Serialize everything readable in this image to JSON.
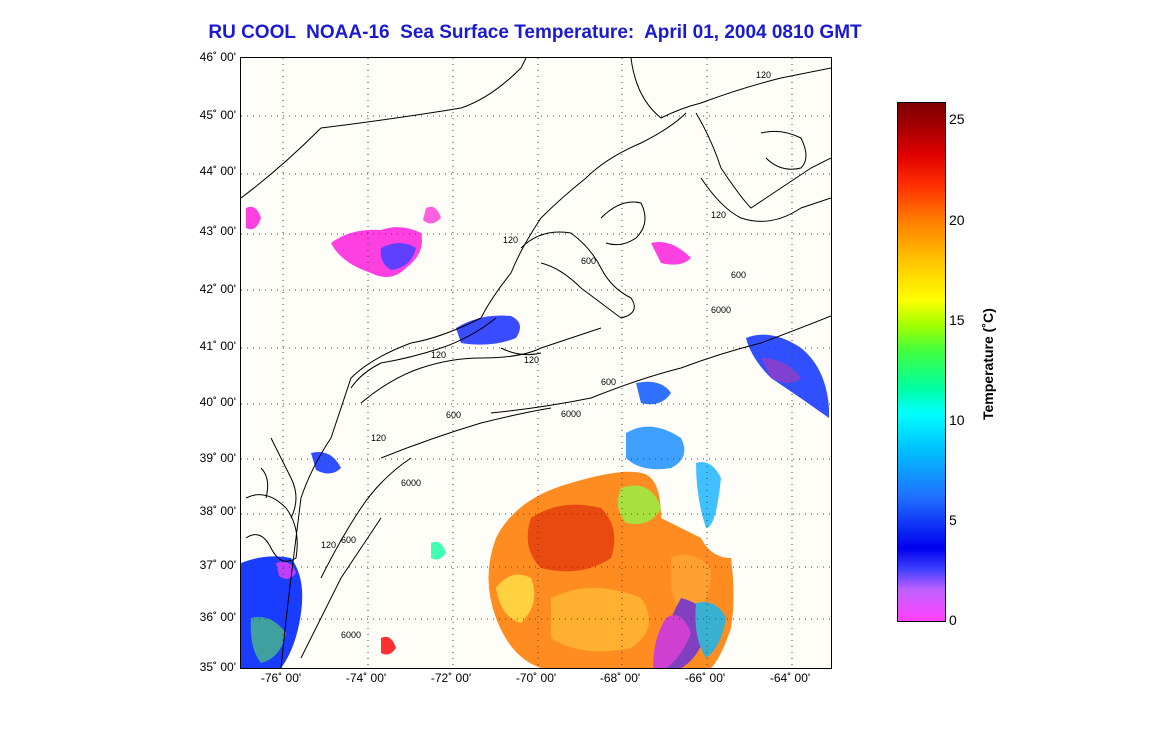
{
  "title": "RU COOL  NOAA-16  Sea Surface Temperature:  April 01, 2004 0810 GMT",
  "map": {
    "lat_labels": [
      "46˚ 00'",
      "45˚ 00'",
      "44˚ 00'",
      "43˚ 00'",
      "42˚ 00'",
      "41˚ 00'",
      "40˚ 00'",
      "39˚ 00'",
      "38˚ 00'",
      "37˚ 00'",
      "36˚ 00'",
      "35˚ 00'"
    ],
    "lon_labels": [
      "-76˚ 00'",
      "-74˚ 00'",
      "-72˚ 00'",
      "-70˚ 00'",
      "-68˚ 00'",
      "-66˚ 00'",
      "-64˚ 00'"
    ],
    "lat_range": [
      35,
      46
    ],
    "lon_range": [
      -77.2,
      -62.9
    ],
    "contour_labels": [
      "120",
      "600",
      "6000"
    ]
  },
  "colorbar": {
    "label": "Temperature (˚C)",
    "ticks": [
      "25",
      "20",
      "15",
      "10",
      "5",
      "0"
    ],
    "range": [
      0,
      26
    ],
    "colors": {
      "min": "#ff40ff",
      "low": "#0000ee",
      "mid": "#ffff00",
      "high": "#800000"
    }
  }
}
